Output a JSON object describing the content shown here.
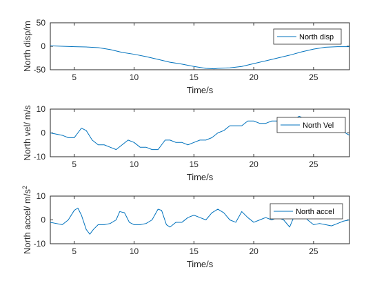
{
  "line_color": "#0072BD",
  "chart_data": [
    {
      "type": "line",
      "xlabel": "Time/s",
      "ylabel": "North disp/m",
      "xlim": [
        3,
        28
      ],
      "ylim": [
        -50,
        50
      ],
      "xticks": [
        5,
        10,
        15,
        20,
        25
      ],
      "yticks": [
        -50,
        0,
        50
      ],
      "xtick_labels": [
        "5",
        "10",
        "15",
        "20",
        "25"
      ],
      "ytick_labels": [
        "-50",
        "0",
        "50"
      ],
      "grid": false,
      "legend_position": "top-right",
      "series": [
        {
          "name": "North disp",
          "x": [
            3,
            4,
            5,
            6,
            7,
            8,
            9,
            10,
            11,
            12,
            13,
            14,
            15,
            16,
            16.7,
            17,
            18,
            19,
            20,
            21,
            22,
            23,
            24,
            25,
            26,
            27,
            28
          ],
          "y": [
            1,
            0,
            -1,
            -1.5,
            -3,
            -7,
            -13,
            -17,
            -22,
            -28,
            -34,
            -38,
            -43,
            -47,
            -48,
            -47,
            -46,
            -43,
            -37,
            -31,
            -25,
            -19,
            -12,
            -6,
            -2,
            -1,
            -1
          ]
        }
      ]
    },
    {
      "type": "line",
      "xlabel": "Time/s",
      "ylabel": "North vel/ m/s",
      "xlim": [
        3,
        28
      ],
      "ylim": [
        -10,
        10
      ],
      "xticks": [
        5,
        10,
        15,
        20,
        25
      ],
      "yticks": [
        -10,
        0,
        10
      ],
      "xtick_labels": [
        "5",
        "10",
        "15",
        "20",
        "25"
      ],
      "ytick_labels": [
        "-10",
        "0",
        "10"
      ],
      "grid": false,
      "legend_position": "top-right",
      "series": [
        {
          "name": "North Vel",
          "x": [
            3,
            3.5,
            4,
            4.5,
            5,
            5.3,
            5.6,
            6,
            6.5,
            7,
            7.5,
            8,
            8.5,
            9,
            9.5,
            10,
            10.5,
            11,
            11.5,
            12,
            12.3,
            12.6,
            13,
            13.5,
            14,
            14.5,
            15,
            15.5,
            16,
            16.5,
            17,
            17.5,
            18,
            18.5,
            19,
            19.5,
            20,
            20.5,
            21,
            21.5,
            22,
            22.5,
            23,
            23.5,
            23.8,
            24.2,
            24.6,
            25,
            25.5,
            26,
            26.5,
            27,
            27.5,
            28
          ],
          "y": [
            0,
            -0.5,
            -1,
            -2,
            -2,
            0,
            2,
            1,
            -3,
            -5,
            -5,
            -6,
            -7,
            -5,
            -3,
            -4,
            -6,
            -6,
            -7,
            -7,
            -5,
            -3,
            -3,
            -4,
            -4,
            -5,
            -4,
            -3,
            -3,
            -2,
            0,
            1,
            3,
            3,
            3,
            5,
            5,
            4,
            4,
            5,
            5,
            5,
            6,
            6,
            7,
            6,
            5,
            4,
            3,
            2,
            1.5,
            1,
            0.5,
            -1
          ]
        }
      ]
    },
    {
      "type": "line",
      "xlabel": "Time/s",
      "ylabel": "North accel/ m/s",
      "ylabel_superscript": "2",
      "xlim": [
        3,
        28
      ],
      "ylim": [
        -10,
        10
      ],
      "xticks": [
        5,
        10,
        15,
        20,
        25
      ],
      "yticks": [
        -10,
        0,
        10
      ],
      "xtick_labels": [
        "5",
        "10",
        "15",
        "20",
        "25"
      ],
      "ytick_labels": [
        "-10",
        "0",
        "10"
      ],
      "grid": false,
      "legend_position": "top-right",
      "series": [
        {
          "name": "North accel",
          "x": [
            3,
            3.5,
            4,
            4.5,
            5,
            5.3,
            5.6,
            6,
            6.3,
            6.6,
            7,
            7.5,
            8,
            8.5,
            8.8,
            9.2,
            9.6,
            10,
            10.5,
            11,
            11.5,
            12,
            12.3,
            12.7,
            13,
            13.5,
            14,
            14.5,
            15,
            15.5,
            16,
            16.5,
            17,
            17.5,
            18,
            18.5,
            19,
            19.5,
            20,
            20.5,
            21,
            21.5,
            22,
            22.5,
            23,
            23.5,
            24,
            24.5,
            25,
            25.5,
            26,
            26.5,
            27,
            27.5,
            28
          ],
          "y": [
            -1,
            -1.5,
            -2,
            0,
            4,
            5,
            2,
            -4,
            -6,
            -4,
            -2,
            -2,
            -1.5,
            0,
            3.5,
            3,
            -1,
            -2,
            -2,
            -1.5,
            0,
            4.5,
            4,
            -2,
            -3,
            -1,
            -1,
            1,
            2,
            1,
            0,
            3,
            4.5,
            3,
            0,
            -1,
            3.5,
            1,
            -1,
            0,
            1,
            0,
            1,
            0,
            -3,
            3,
            4,
            0,
            -2,
            -1.5,
            -2,
            -2.5,
            -1.5,
            -0.5,
            0
          ]
        }
      ]
    }
  ]
}
